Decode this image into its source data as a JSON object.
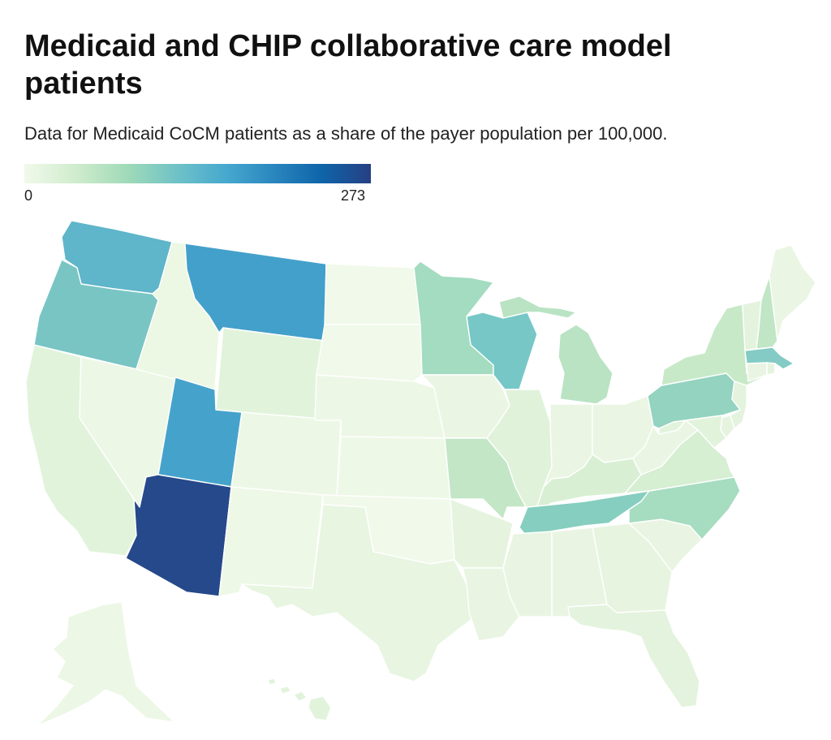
{
  "header": {
    "title": "Medicaid and CHIP collaborative care model patients",
    "subtitle": "Data for Medicaid CoCM patients as a share of the payer population per 100,000."
  },
  "legend": {
    "min_label": "0",
    "max_label": "273",
    "colors": [
      "#f1f9ea",
      "#cfeccc",
      "#9fdab8",
      "#6cc0c8",
      "#47a9cf",
      "#2a86be",
      "#0e64a8",
      "#273f84"
    ]
  },
  "map": {
    "region": "United States",
    "states": [
      {
        "name": "Washington",
        "color": "#5fb5c9"
      },
      {
        "name": "Oregon",
        "color": "#78c5c4"
      },
      {
        "name": "California",
        "color": "#e2f3dc"
      },
      {
        "name": "Idaho",
        "color": "#ecf7e4"
      },
      {
        "name": "Nevada",
        "color": "#edf7e6"
      },
      {
        "name": "Montana",
        "color": "#43a0cb"
      },
      {
        "name": "Wyoming",
        "color": "#e2f3dc"
      },
      {
        "name": "Utah",
        "color": "#45a3cb"
      },
      {
        "name": "Arizona",
        "color": "#25498a"
      },
      {
        "name": "Colorado",
        "color": "#edf7e6"
      },
      {
        "name": "New Mexico",
        "color": "#eef8e7"
      },
      {
        "name": "North Dakota",
        "color": "#f0f9ea"
      },
      {
        "name": "South Dakota",
        "color": "#f0f9ea"
      },
      {
        "name": "Nebraska",
        "color": "#edf7e6"
      },
      {
        "name": "Kansas",
        "color": "#eef8e7"
      },
      {
        "name": "Oklahoma",
        "color": "#f1f9ea"
      },
      {
        "name": "Texas",
        "color": "#e7f5e1"
      },
      {
        "name": "Minnesota",
        "color": "#a3dcc0"
      },
      {
        "name": "Iowa",
        "color": "#eaf6e3"
      },
      {
        "name": "Missouri",
        "color": "#c3e6c6"
      },
      {
        "name": "Arkansas",
        "color": "#e6f4df"
      },
      {
        "name": "Louisiana",
        "color": "#e9f5e2"
      },
      {
        "name": "Wisconsin",
        "color": "#77c7c7"
      },
      {
        "name": "Illinois",
        "color": "#e0f2da"
      },
      {
        "name": "Michigan",
        "color": "#b9e3c3"
      },
      {
        "name": "Indiana",
        "color": "#eaf6e3"
      },
      {
        "name": "Ohio",
        "color": "#eaf6e3"
      },
      {
        "name": "Kentucky",
        "color": "#d8efd3"
      },
      {
        "name": "Tennessee",
        "color": "#86cebf"
      },
      {
        "name": "Mississippi",
        "color": "#e9f5e2"
      },
      {
        "name": "Alabama",
        "color": "#e9f5e2"
      },
      {
        "name": "Georgia",
        "color": "#e7f4e0"
      },
      {
        "name": "Florida",
        "color": "#e4f3dd"
      },
      {
        "name": "South Carolina",
        "color": "#e9f5e2"
      },
      {
        "name": "North Carolina",
        "color": "#a6dcc0"
      },
      {
        "name": "Virginia",
        "color": "#d6eed2"
      },
      {
        "name": "West Virginia",
        "color": "#eaf6e3"
      },
      {
        "name": "Pennsylvania",
        "color": "#93d3c0"
      },
      {
        "name": "New York",
        "color": "#c8e9c8"
      },
      {
        "name": "Maryland",
        "color": "#e2f3dc"
      },
      {
        "name": "Delaware",
        "color": "#e6f4df"
      },
      {
        "name": "New Jersey",
        "color": "#e3f3dd"
      },
      {
        "name": "Connecticut",
        "color": "#e9f5e2"
      },
      {
        "name": "Rhode Island",
        "color": "#e6f4df"
      },
      {
        "name": "Massachusetts",
        "color": "#84cbc5"
      },
      {
        "name": "Vermont",
        "color": "#e4f3dd"
      },
      {
        "name": "New Hampshire",
        "color": "#c1e6c6"
      },
      {
        "name": "Maine",
        "color": "#eaf6e3"
      },
      {
        "name": "Alaska",
        "color": "#ecf7e5"
      },
      {
        "name": "Hawaii",
        "color": "#e2f3dc"
      }
    ]
  }
}
